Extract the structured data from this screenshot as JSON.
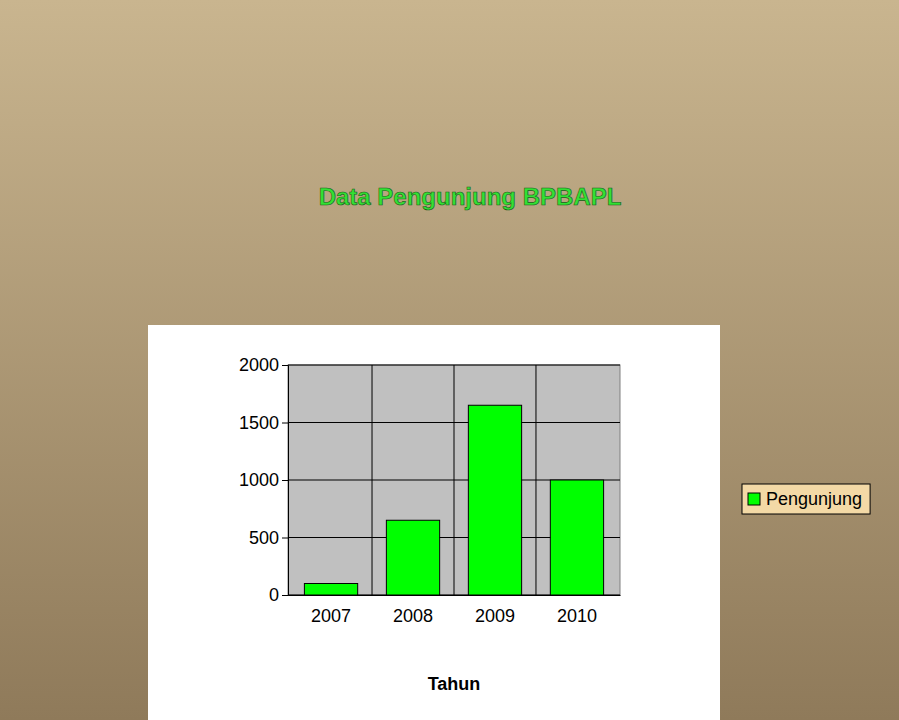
{
  "chart_data": {
    "type": "bar",
    "title": "Data Pengunjung BPBAPL",
    "categories": [
      "2007",
      "2008",
      "2009",
      "2010"
    ],
    "series": [
      {
        "name": "Pengunjung",
        "color": "#00ff00",
        "values": [
          100,
          650,
          1650,
          1000
        ]
      }
    ],
    "x_label": "Tahun",
    "ylim": [
      0,
      2000
    ],
    "yticks": [
      0,
      500,
      1000,
      1500,
      2000
    ],
    "grid": true,
    "legend": "right"
  }
}
